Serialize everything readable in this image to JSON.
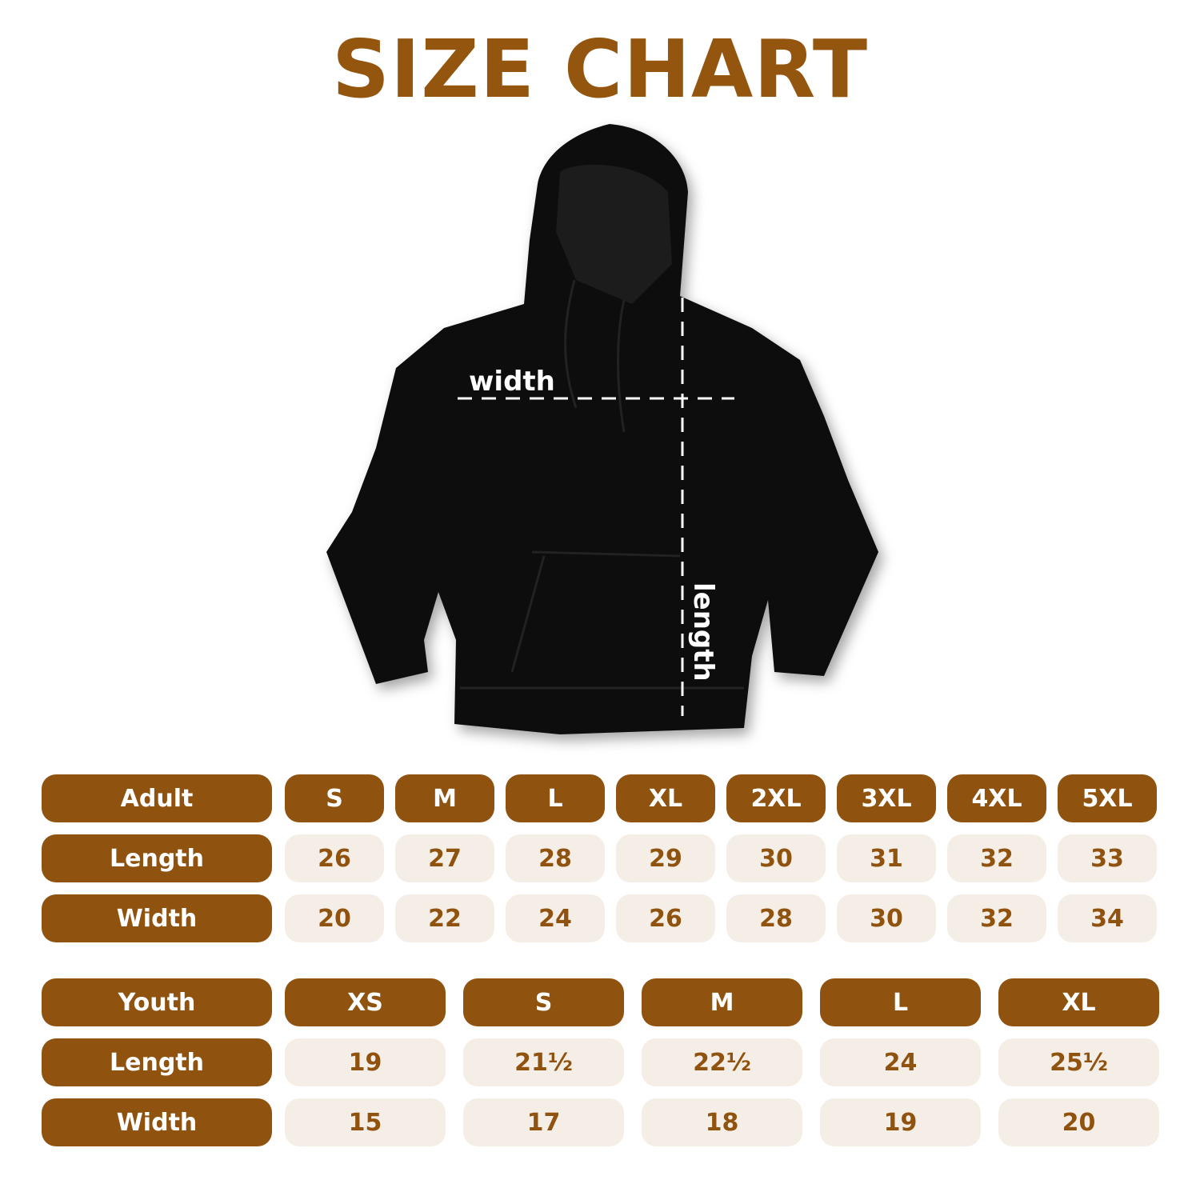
{
  "title": "SIZE CHART",
  "diagram": {
    "width_label": "width",
    "length_label": "length"
  },
  "colors": {
    "brand": "#8F530F",
    "cell_bg": "#F5EEE6",
    "title": "#94560F"
  },
  "adult": {
    "header": "Adult",
    "sizes": [
      "S",
      "M",
      "L",
      "XL",
      "2XL",
      "3XL",
      "4XL",
      "5XL"
    ],
    "rows": [
      {
        "label": "Length",
        "values": [
          "26",
          "27",
          "28",
          "29",
          "30",
          "31",
          "32",
          "33"
        ]
      },
      {
        "label": "Width",
        "values": [
          "20",
          "22",
          "24",
          "26",
          "28",
          "30",
          "32",
          "34"
        ]
      }
    ]
  },
  "youth": {
    "header": "Youth",
    "sizes": [
      "XS",
      "S",
      "M",
      "L",
      "XL"
    ],
    "rows": [
      {
        "label": "Length",
        "values": [
          "19",
          "21½",
          "22½",
          "24",
          "25½"
        ]
      },
      {
        "label": "Width",
        "values": [
          "15",
          "17",
          "18",
          "19",
          "20"
        ]
      }
    ]
  }
}
